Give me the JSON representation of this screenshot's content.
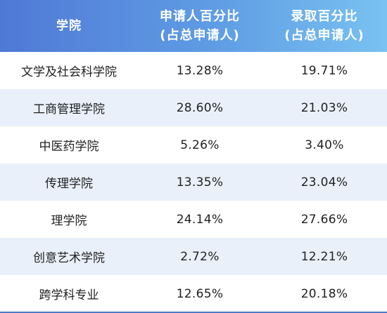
{
  "table": {
    "headers": [
      {
        "line1": "学院",
        "line2": ""
      },
      {
        "line1": "申请人百分比",
        "line2": "(占总申请人)"
      },
      {
        "line1": "录取百分比",
        "line2": "(占总申请人)"
      }
    ],
    "rows": [
      {
        "college": "文学及社会科学院",
        "applicants_pct": "13.28%",
        "admitted_pct": "19.71%"
      },
      {
        "college": "工商管理学院",
        "applicants_pct": "28.60%",
        "admitted_pct": "21.03%"
      },
      {
        "college": "中医药学院",
        "applicants_pct": "5.26%",
        "admitted_pct": "3.40%"
      },
      {
        "college": "传理学院",
        "applicants_pct": "13.35%",
        "admitted_pct": "23.04%"
      },
      {
        "college": "理学院",
        "applicants_pct": "24.14%",
        "admitted_pct": "27.66%"
      },
      {
        "college": "创意艺术学院",
        "applicants_pct": "2.72%",
        "admitted_pct": "12.21%"
      },
      {
        "college": "跨学科专业",
        "applicants_pct": "12.65%",
        "admitted_pct": "20.18%"
      }
    ]
  },
  "colors": {
    "header_start": "#4f79d6",
    "header_end": "#79c2f1",
    "alt_row": "#e9f0fa",
    "bottom_rule": "#4f79c7"
  }
}
